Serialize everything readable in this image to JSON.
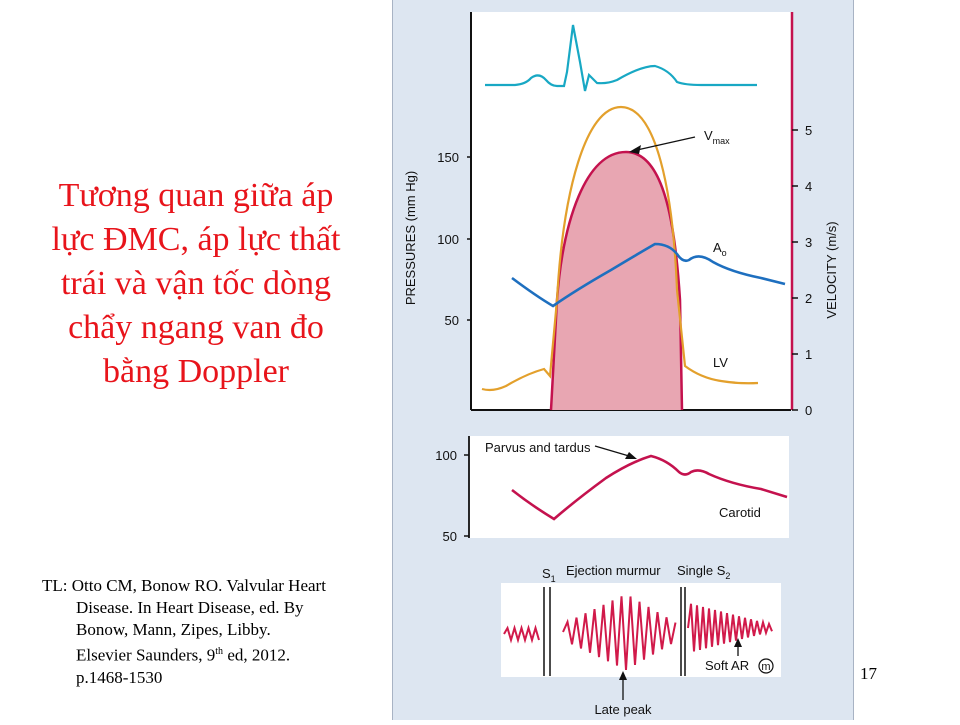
{
  "title_lines": [
    "Tương quan giữa áp",
    "lực ĐMC, áp lực thất",
    "trái và vận tốc dòng",
    "chẩy ngang van đo",
    "bằng Doppler"
  ],
  "reference": {
    "line1": "TL: Otto CM, Bonow RO. Valvular Heart",
    "line2": "Disease. In Heart Disease, ed. By",
    "line3": "Bonow, Mann, Zipes, Libby.",
    "line4_pre": "Elsevier Saunders, 9",
    "line4_sup": "th",
    "line4_post": " ed, 2012.",
    "line5": "p.1468-1530"
  },
  "slide_number": "17",
  "figure": {
    "pressure_axis_label": "PRESSURES (mm Hg)",
    "velocity_axis_label": "VELOCITY (m/s)",
    "pressure_ticks": [
      "150",
      "100",
      "50"
    ],
    "velocity_ticks": [
      "5",
      "4",
      "3",
      "2",
      "1",
      "0"
    ],
    "vmax_label": "V",
    "vmax_sub": "max",
    "ao_label": "A",
    "ao_sub": "o",
    "lv_label": "LV",
    "carotid_ticks": [
      "100",
      "50"
    ],
    "parvus_label": "Parvus and tardus",
    "carotid_label": "Carotid",
    "s1_label": "S",
    "s1_sub": "1",
    "ejection_label": "Ejection murmur",
    "single_s2_label": "Single S",
    "s2_sub": "2",
    "soft_ar_label": "Soft AR",
    "m_label": "m",
    "late_peak_label": "Late peak",
    "colors": {
      "ecg": "#18a8c4",
      "lv": "#e3a02c",
      "velocity_fill": "#e8a6b2",
      "velocity_line": "#c4124e",
      "aorta": "#1e6fbf",
      "carotid": "#c4124e",
      "murmur": "#d11a4a",
      "title": "#e8141b",
      "panel": "#dde6f1"
    }
  }
}
